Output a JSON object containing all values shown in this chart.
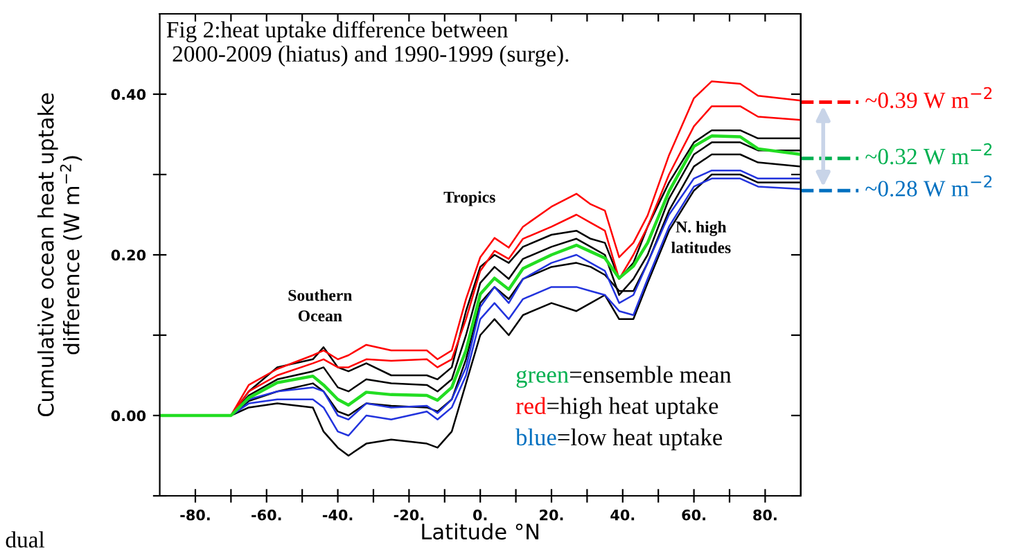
{
  "chart_data": {
    "type": "line",
    "title": "Fig 2:heat uptake difference between\n 2000-2009 (hiatus) and 1990-1999 (surge).",
    "xlabel": "Latitude °N",
    "ylabel": "Cumulative ocean heat uptake\ndifference (W m$^{−2}$)",
    "x": [
      -90,
      -70,
      -65,
      -57,
      -47,
      -44,
      -40,
      -37,
      -32,
      -25,
      -15,
      -12,
      -8,
      -4,
      0,
      4,
      8,
      12,
      20,
      27,
      31,
      35,
      39,
      43,
      47,
      53,
      60,
      65,
      73,
      78,
      90
    ],
    "series": [
      {
        "color": "#000000",
        "values": [
          0,
          0,
          0.03,
          0.06,
          0.07,
          0.085,
          0.06,
          0.055,
          0.065,
          0.05,
          0.05,
          0.045,
          0.06,
          0.13,
          0.185,
          0.2,
          0.19,
          0.21,
          0.225,
          0.23,
          0.22,
          0.215,
          0.17,
          0.19,
          0.235,
          0.29,
          0.34,
          0.355,
          0.355,
          0.345,
          0.345
        ]
      },
      {
        "color": "#000000",
        "values": [
          0,
          0,
          0.025,
          0.045,
          0.055,
          0.06,
          0.035,
          0.03,
          0.045,
          0.04,
          0.038,
          0.03,
          0.045,
          0.1,
          0.165,
          0.185,
          0.17,
          0.195,
          0.21,
          0.22,
          0.21,
          0.2,
          0.15,
          0.17,
          0.2,
          0.27,
          0.325,
          0.34,
          0.34,
          0.33,
          0.33
        ]
      },
      {
        "color": "#000000",
        "values": [
          0,
          0,
          0.018,
          0.03,
          0.04,
          0.03,
          0.005,
          0.0,
          0.015,
          0.012,
          0.01,
          0.005,
          0.02,
          0.07,
          0.14,
          0.16,
          0.145,
          0.17,
          0.185,
          0.19,
          0.185,
          0.175,
          0.155,
          0.155,
          0.19,
          0.255,
          0.31,
          0.325,
          0.325,
          0.315,
          0.31
        ]
      },
      {
        "color": "#000000",
        "values": [
          0,
          0,
          0.01,
          0.015,
          0.01,
          -0.02,
          -0.04,
          -0.05,
          -0.035,
          -0.03,
          -0.035,
          -0.04,
          -0.02,
          0.04,
          0.1,
          0.12,
          0.1,
          0.125,
          0.14,
          0.13,
          0.14,
          0.15,
          0.12,
          0.12,
          0.165,
          0.23,
          0.28,
          0.3,
          0.3,
          0.29,
          0.29
        ]
      },
      {
        "color": "#ff0000",
        "values": [
          0,
          0,
          0.038,
          0.058,
          0.075,
          0.081,
          0.07,
          0.075,
          0.088,
          0.081,
          0.081,
          0.07,
          0.081,
          0.145,
          0.197,
          0.221,
          0.209,
          0.235,
          0.26,
          0.276,
          0.263,
          0.255,
          0.197,
          0.215,
          0.249,
          0.324,
          0.395,
          0.416,
          0.413,
          0.398,
          0.392
        ]
      },
      {
        "color": "#ff0000",
        "values": [
          0,
          0,
          0.03,
          0.05,
          0.065,
          0.07,
          0.06,
          0.06,
          0.07,
          0.068,
          0.07,
          0.06,
          0.07,
          0.12,
          0.18,
          0.205,
          0.195,
          0.22,
          0.235,
          0.25,
          0.24,
          0.23,
          0.17,
          0.2,
          0.235,
          0.3,
          0.36,
          0.385,
          0.385,
          0.372,
          0.368
        ]
      },
      {
        "color": "#2233dd",
        "values": [
          0,
          0,
          0.02,
          0.03,
          0.035,
          0.03,
          0.0,
          -0.005,
          0.015,
          0.01,
          0.012,
          0.003,
          0.02,
          0.06,
          0.135,
          0.16,
          0.14,
          0.17,
          0.19,
          0.2,
          0.19,
          0.18,
          0.14,
          0.15,
          0.19,
          0.25,
          0.295,
          0.305,
          0.305,
          0.295,
          0.295
        ]
      },
      {
        "color": "#2233dd",
        "values": [
          0,
          0,
          0.015,
          0.02,
          0.02,
          0.01,
          -0.02,
          -0.025,
          0.0,
          -0.005,
          0.005,
          -0.005,
          0.01,
          0.05,
          0.12,
          0.14,
          0.12,
          0.145,
          0.16,
          0.16,
          0.155,
          0.15,
          0.13,
          0.125,
          0.17,
          0.235,
          0.285,
          0.295,
          0.295,
          0.285,
          0.282
        ]
      },
      {
        "color": "#22dd22",
        "values": [
          0,
          0,
          0.022,
          0.041,
          0.049,
          0.038,
          0.02,
          0.013,
          0.029,
          0.026,
          0.025,
          0.019,
          0.035,
          0.081,
          0.151,
          0.171,
          0.157,
          0.183,
          0.2,
          0.212,
          0.204,
          0.196,
          0.171,
          0.186,
          0.215,
          0.279,
          0.335,
          0.348,
          0.347,
          0.332,
          0.325
        ]
      }
    ],
    "xlim": [
      -90,
      90
    ],
    "xticks": [
      {
        "value": -80,
        "label": "-80."
      },
      {
        "value": -70,
        "label": null
      },
      {
        "value": -60,
        "label": "-60."
      },
      {
        "value": -50,
        "label": null
      },
      {
        "value": -40,
        "label": "-40."
      },
      {
        "value": -30,
        "label": null
      },
      {
        "value": -20,
        "label": "-20."
      },
      {
        "value": -10,
        "label": null
      },
      {
        "value": 0,
        "label": "0."
      },
      {
        "value": 10,
        "label": null
      },
      {
        "value": 20,
        "label": "20."
      },
      {
        "value": 30,
        "label": null
      },
      {
        "value": 40,
        "label": "40."
      },
      {
        "value": 50,
        "label": null
      },
      {
        "value": 60,
        "label": "60."
      },
      {
        "value": 70,
        "label": null
      },
      {
        "value": 80,
        "label": "80."
      }
    ],
    "ylim": [
      -0.1,
      0.5
    ],
    "yticks": [
      {
        "value": -0.1,
        "label": null
      },
      {
        "value": 0,
        "label": "0.00"
      },
      {
        "value": 0.1,
        "label": null
      },
      {
        "value": 0.2,
        "label": "0.20"
      },
      {
        "value": 0.3,
        "label": null
      },
      {
        "value": 0.4,
        "label": "0.40"
      }
    ],
    "ref_lines": [
      {
        "axis": "y",
        "value": 0.39,
        "label": "~0.39 W m$^{−2}$",
        "color": "#ff0000",
        "line_style": "dashed"
      },
      {
        "axis": "y",
        "value": 0.32,
        "label": "~0.32 W m$^{−2}$",
        "color": "#00b050",
        "line_style": "dashed"
      },
      {
        "axis": "y",
        "value": 0.28,
        "label": "~0.28 W m$^{−2}$",
        "color": "#0070c0",
        "line_style": "dashed"
      }
    ],
    "annotations": [
      "Southern\nOcean",
      "Tropics",
      "N. high\nlatitudes",
      "green=ensemble mean",
      "red=high heat uptake",
      "blue=low heat uptake",
      "dual"
    ],
    "grid": false,
    "legend": false,
    "marker": "none",
    "line_style": "solid"
  }
}
